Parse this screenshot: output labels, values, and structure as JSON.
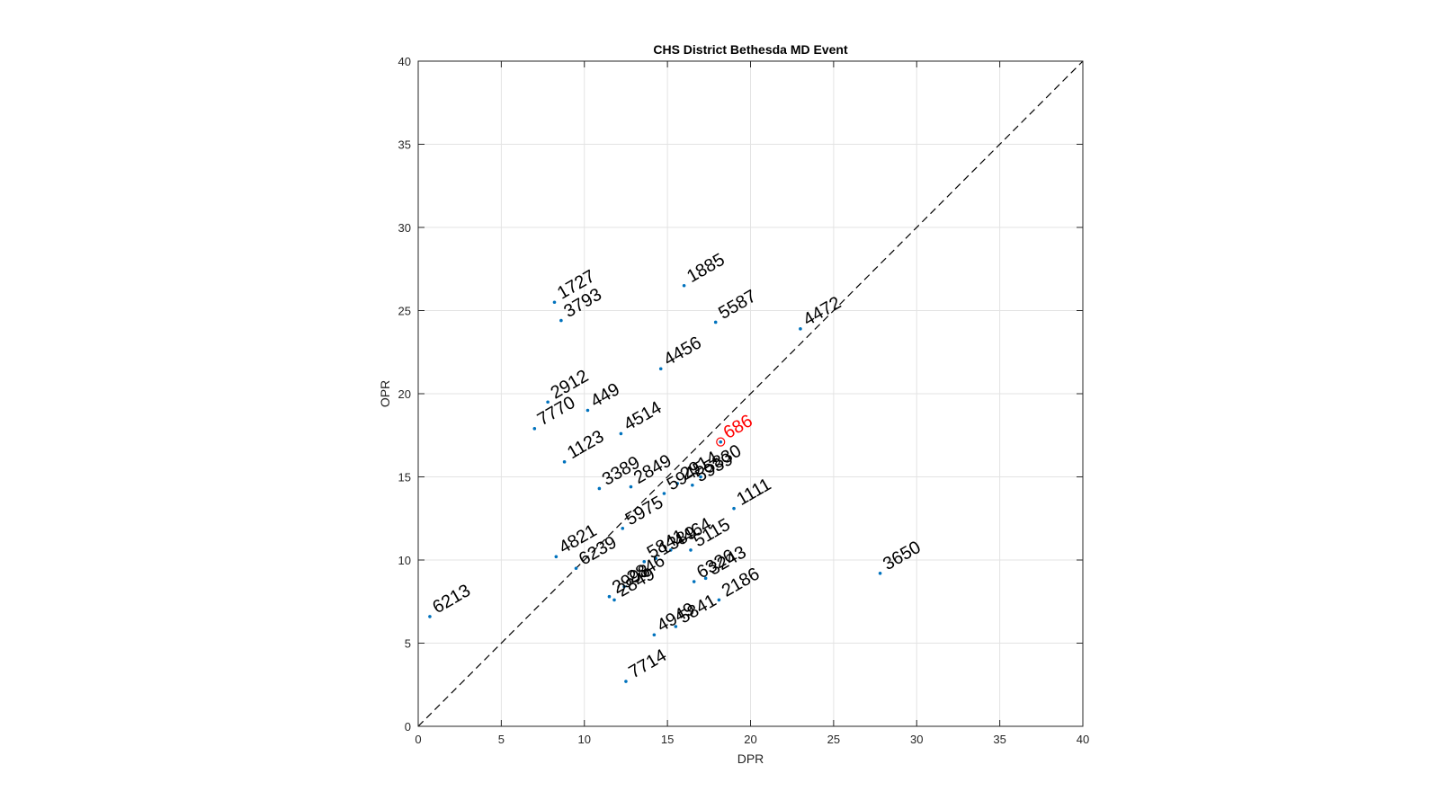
{
  "chart_data": {
    "type": "scatter",
    "title": "CHS District Bethesda MD Event",
    "xlabel": "DPR",
    "ylabel": "OPR",
    "xlim": [
      0,
      40
    ],
    "ylim": [
      0,
      40
    ],
    "xticks": [
      "0",
      "5",
      "10",
      "15",
      "20",
      "25",
      "30",
      "35",
      "40"
    ],
    "yticks": [
      "0",
      "5",
      "10",
      "15",
      "20",
      "25",
      "30",
      "35",
      "40"
    ],
    "grid": true,
    "reference_line": "y = x (dashed)",
    "point_color": "#0072BD",
    "label_color": "#000000",
    "highlight_color": "#FF0000",
    "highlight_team": "686",
    "points": [
      {
        "team": "1727",
        "x": 8.2,
        "y": 25.5
      },
      {
        "team": "3793",
        "x": 8.6,
        "y": 24.4
      },
      {
        "team": "1885",
        "x": 16.0,
        "y": 26.5
      },
      {
        "team": "5587",
        "x": 17.9,
        "y": 24.3
      },
      {
        "team": "4472",
        "x": 23.0,
        "y": 23.9
      },
      {
        "team": "4456",
        "x": 14.6,
        "y": 21.5
      },
      {
        "team": "2912",
        "x": 7.8,
        "y": 19.5
      },
      {
        "team": "7770",
        "x": 7.0,
        "y": 17.9
      },
      {
        "team": "449",
        "x": 10.2,
        "y": 19.0
      },
      {
        "team": "4514",
        "x": 12.2,
        "y": 17.6
      },
      {
        "team": "1123",
        "x": 8.8,
        "y": 15.9
      },
      {
        "team": "686",
        "x": 18.2,
        "y": 17.1
      },
      {
        "team": "5830",
        "x": 17.0,
        "y": 15.0
      },
      {
        "team": "3389",
        "x": 10.9,
        "y": 14.3
      },
      {
        "team": "2849",
        "x": 12.8,
        "y": 14.4
      },
      {
        "team": "2914",
        "x": 15.6,
        "y": 14.6
      },
      {
        "team": "5945",
        "x": 14.8,
        "y": 14.0
      },
      {
        "team": "5939",
        "x": 16.5,
        "y": 14.5
      },
      {
        "team": "5975",
        "x": 12.3,
        "y": 11.9
      },
      {
        "team": "1111",
        "x": 19.0,
        "y": 13.1
      },
      {
        "team": "4821",
        "x": 8.3,
        "y": 10.2
      },
      {
        "team": "6239",
        "x": 9.5,
        "y": 9.5
      },
      {
        "team": "4464",
        "x": 15.2,
        "y": 10.6
      },
      {
        "team": "5115",
        "x": 16.4,
        "y": 10.6
      },
      {
        "team": "1389",
        "x": 14.3,
        "y": 10.1
      },
      {
        "team": "5841",
        "x": 13.6,
        "y": 9.9
      },
      {
        "team": "2998",
        "x": 11.5,
        "y": 7.8
      },
      {
        "team": "2849",
        "x": 11.8,
        "y": 7.6
      },
      {
        "team": "2846",
        "x": 12.4,
        "y": 8.4
      },
      {
        "team": "6326",
        "x": 16.6,
        "y": 8.7
      },
      {
        "team": "3243",
        "x": 17.3,
        "y": 8.9
      },
      {
        "team": "2186",
        "x": 18.1,
        "y": 7.6
      },
      {
        "team": "3650",
        "x": 27.8,
        "y": 9.2
      },
      {
        "team": "6213",
        "x": 0.7,
        "y": 6.6
      },
      {
        "team": "4949",
        "x": 14.2,
        "y": 5.5
      },
      {
        "team": "5841",
        "x": 15.5,
        "y": 6.0
      },
      {
        "team": "7714",
        "x": 12.5,
        "y": 2.7
      }
    ]
  }
}
